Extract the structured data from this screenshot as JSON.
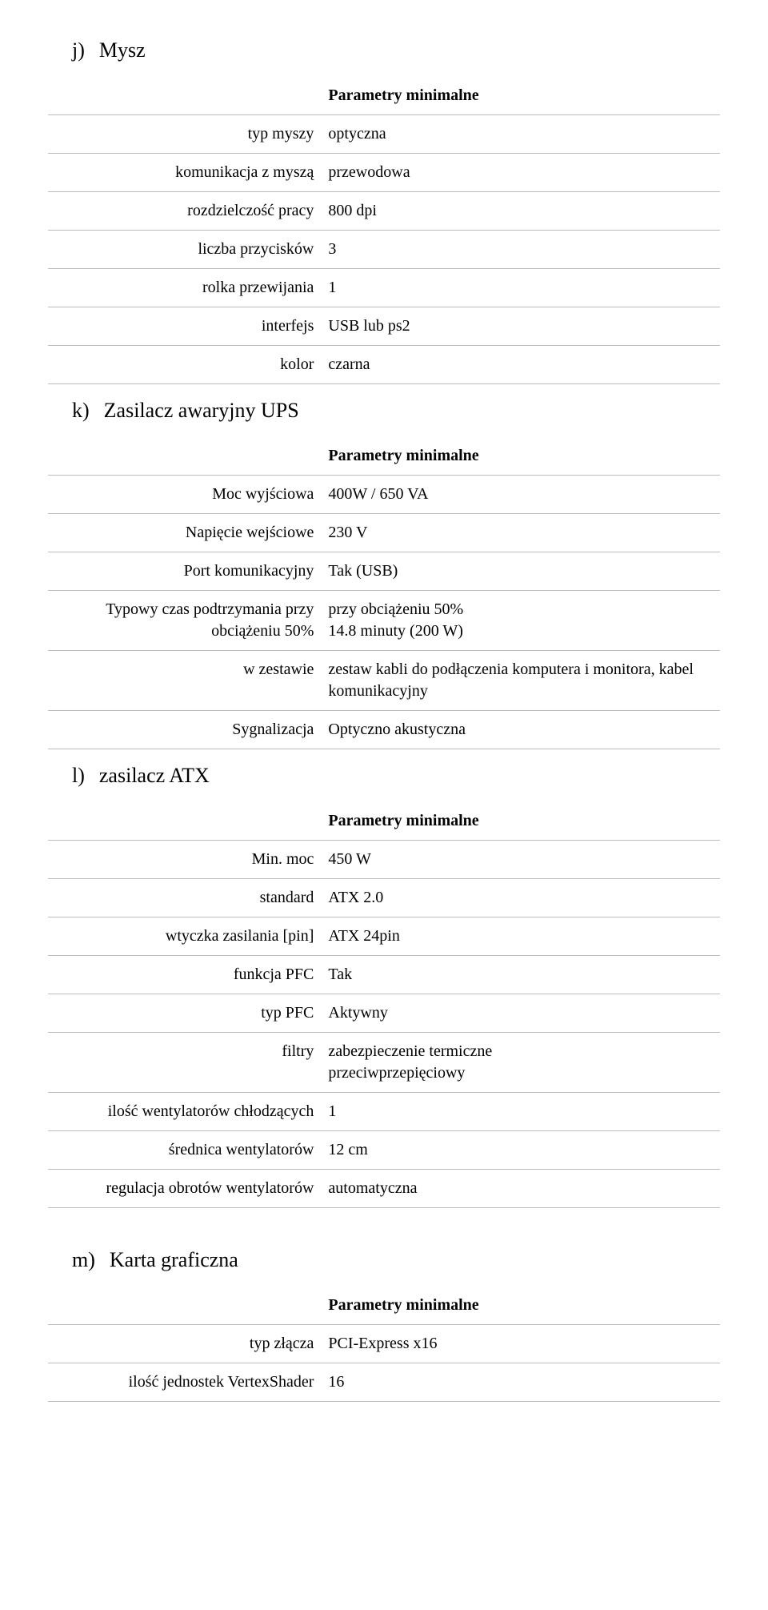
{
  "common": {
    "header_label": "Parametry minimalne"
  },
  "mouse": {
    "letter": "j)",
    "title": "Mysz",
    "rows": [
      {
        "label": "typ myszy",
        "value": "optyczna"
      },
      {
        "label": "komunikacja z myszą",
        "value": "przewodowa"
      },
      {
        "label": "rozdzielczość pracy",
        "value": "800 dpi"
      },
      {
        "label": "liczba przycisków",
        "value": "3"
      },
      {
        "label": "rolka przewijania",
        "value": "1"
      },
      {
        "label": "interfejs",
        "value": "USB lub ps2"
      },
      {
        "label": "kolor",
        "value": "czarna"
      }
    ]
  },
  "ups": {
    "letter": "k)",
    "title": "Zasilacz awaryjny UPS",
    "rows": [
      {
        "label": "Moc wyjściowa",
        "value": "400W / 650 VA"
      },
      {
        "label": "Napięcie wejściowe",
        "value": "230 V"
      },
      {
        "label": "Port komunikacyjny",
        "value": "Tak (USB)"
      },
      {
        "label": "Typowy czas podtrzymania przy obciążeniu 50%",
        "value": "przy obciążeniu 50%\n14.8 minuty (200 W)"
      },
      {
        "label": "w zestawie",
        "value": "zestaw kabli do podłączenia komputera i monitora, kabel komunikacyjny"
      },
      {
        "label": "Sygnalizacja",
        "value": "Optyczno akustyczna"
      }
    ]
  },
  "atx": {
    "letter": "l)",
    "title": "zasilacz ATX",
    "rows": [
      {
        "label": "Min. moc",
        "value": "450 W"
      },
      {
        "label": "standard",
        "value": "ATX 2.0"
      },
      {
        "label": "wtyczka zasilania [pin]",
        "value": "ATX 24pin"
      },
      {
        "label": "funkcja PFC",
        "value": "Tak"
      },
      {
        "label": "typ PFC",
        "value": "Aktywny"
      },
      {
        "label": "filtry",
        "value": "zabezpieczenie termiczne\nprzeciwprzepięciowy"
      },
      {
        "label": "ilość wentylatorów chłodzących",
        "value": "1"
      },
      {
        "label": "średnica wentylatorów",
        "value": "12 cm"
      },
      {
        "label": "regulacja obrotów wentylatorów",
        "value": "automatyczna"
      }
    ]
  },
  "gpu": {
    "letter": "m)",
    "title": "Karta graficzna",
    "rows": [
      {
        "label": "typ złącza",
        "value": "PCI-Express x16"
      },
      {
        "label": "ilość jednostek VertexShader",
        "value": "16"
      }
    ]
  }
}
